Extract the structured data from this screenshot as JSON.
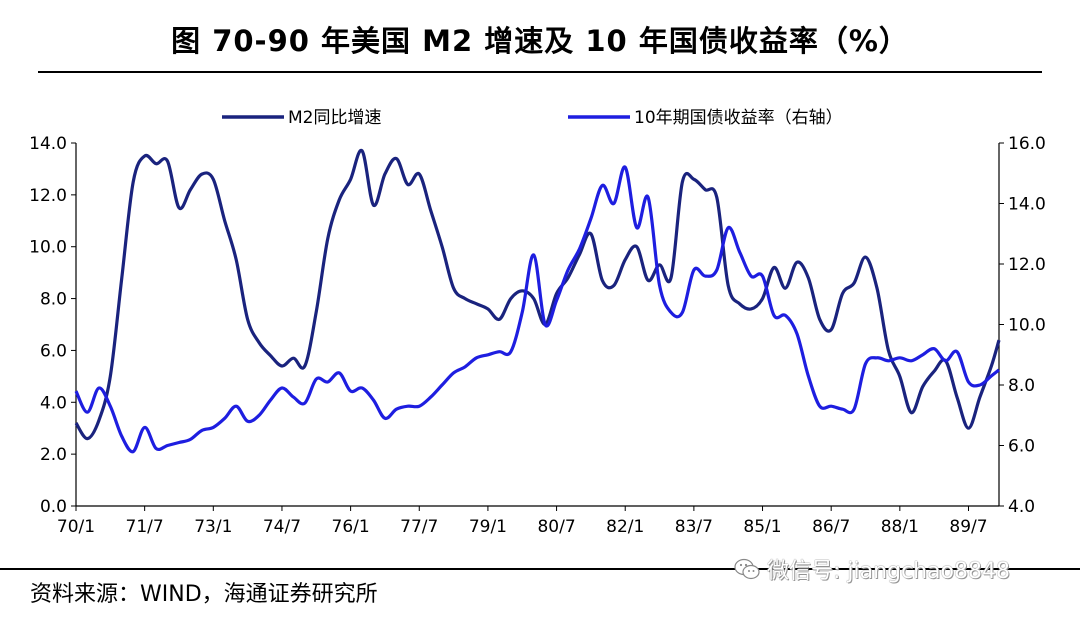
{
  "title": "图    70-90 年美国 M2 增速及 10 年国债收益率（%）",
  "source": "资料来源：WIND，海通证券研究所",
  "watermark": "微信号: jiangchao8848",
  "chart_data": {
    "type": "line",
    "x_ticks": [
      "70/1",
      "71/7",
      "73/1",
      "74/7",
      "76/1",
      "77/7",
      "79/1",
      "80/7",
      "82/1",
      "83/7",
      "85/1",
      "86/7",
      "88/1",
      "89/7"
    ],
    "x_start": "1970-01",
    "x_end": "1990-03",
    "y_left": {
      "ticks": [
        "0.0",
        "2.0",
        "4.0",
        "6.0",
        "8.0",
        "10.0",
        "12.0",
        "14.0"
      ],
      "lim": [
        0,
        14
      ]
    },
    "y_right": {
      "ticks": [
        "4.0",
        "6.0",
        "8.0",
        "10.0",
        "12.0",
        "14.0",
        "16.0"
      ],
      "lim": [
        4,
        16
      ]
    },
    "legend_position": "top",
    "series": [
      {
        "name": "M2同比增速",
        "axis": "left",
        "color": "#1a237e",
        "x": [
          "1970-01",
          "1970-04",
          "1970-07",
          "1970-10",
          "1971-01",
          "1971-04",
          "1971-07",
          "1971-10",
          "1972-01",
          "1972-04",
          "1972-07",
          "1972-10",
          "1973-01",
          "1973-04",
          "1973-07",
          "1973-10",
          "1974-01",
          "1974-04",
          "1974-07",
          "1974-10",
          "1975-01",
          "1975-04",
          "1975-07",
          "1975-10",
          "1976-01",
          "1976-04",
          "1976-07",
          "1976-10",
          "1977-01",
          "1977-04",
          "1977-07",
          "1977-10",
          "1978-01",
          "1978-04",
          "1978-07",
          "1978-10",
          "1979-01",
          "1979-04",
          "1979-07",
          "1979-10",
          "1980-01",
          "1980-04",
          "1980-07",
          "1980-10",
          "1981-01",
          "1981-04",
          "1981-07",
          "1981-10",
          "1982-01",
          "1982-04",
          "1982-07",
          "1982-10",
          "1983-01",
          "1983-04",
          "1983-07",
          "1983-10",
          "1984-01",
          "1984-04",
          "1984-07",
          "1984-10",
          "1985-01",
          "1985-04",
          "1985-07",
          "1985-10",
          "1986-01",
          "1986-04",
          "1986-07",
          "1986-10",
          "1987-01",
          "1987-04",
          "1987-07",
          "1987-10",
          "1988-01",
          "1988-04",
          "1988-07",
          "1988-10",
          "1989-01",
          "1989-04",
          "1989-07",
          "1989-10",
          "1990-01",
          "1990-03"
        ],
        "values": [
          3.2,
          2.6,
          3.3,
          5.0,
          8.8,
          12.5,
          13.5,
          13.2,
          13.3,
          11.5,
          12.2,
          12.8,
          12.6,
          11.0,
          9.5,
          7.2,
          6.3,
          5.8,
          5.4,
          5.7,
          5.4,
          7.5,
          10.3,
          11.8,
          12.6,
          13.7,
          11.6,
          12.8,
          13.4,
          12.4,
          12.8,
          11.4,
          10.0,
          8.4,
          8.0,
          7.8,
          7.6,
          7.2,
          8.0,
          8.3,
          8.0,
          7.0,
          8.2,
          8.8,
          9.7,
          10.5,
          8.7,
          8.5,
          9.5,
          10.0,
          8.7,
          9.3,
          8.8,
          12.5,
          12.6,
          12.2,
          11.9,
          8.5,
          7.8,
          7.6,
          8.0,
          9.2,
          8.4,
          9.4,
          8.8,
          7.2,
          6.8,
          8.2,
          8.6,
          9.6,
          8.4,
          6.0,
          5.0,
          3.6,
          4.6,
          5.2,
          5.6,
          4.2,
          3.0,
          4.2,
          5.4,
          6.4
        ]
      },
      {
        "name": "10年期国债收益率（右轴）",
        "axis": "right",
        "color": "#1e1ee0",
        "x": [
          "1970-01",
          "1970-04",
          "1970-07",
          "1970-10",
          "1971-01",
          "1971-04",
          "1971-07",
          "1971-10",
          "1972-01",
          "1972-04",
          "1972-07",
          "1972-10",
          "1973-01",
          "1973-04",
          "1973-07",
          "1973-10",
          "1974-01",
          "1974-04",
          "1974-07",
          "1974-10",
          "1975-01",
          "1975-04",
          "1975-07",
          "1975-10",
          "1976-01",
          "1976-04",
          "1976-07",
          "1976-10",
          "1977-01",
          "1977-04",
          "1977-07",
          "1977-10",
          "1978-01",
          "1978-04",
          "1978-07",
          "1978-10",
          "1979-01",
          "1979-04",
          "1979-07",
          "1979-10",
          "1980-01",
          "1980-04",
          "1980-07",
          "1980-10",
          "1981-01",
          "1981-04",
          "1981-07",
          "1981-10",
          "1982-01",
          "1982-04",
          "1982-07",
          "1982-10",
          "1983-01",
          "1983-04",
          "1983-07",
          "1983-10",
          "1984-01",
          "1984-04",
          "1984-07",
          "1984-10",
          "1985-01",
          "1985-04",
          "1985-07",
          "1985-10",
          "1986-01",
          "1986-04",
          "1986-07",
          "1986-10",
          "1987-01",
          "1987-04",
          "1987-07",
          "1987-10",
          "1988-01",
          "1988-04",
          "1988-07",
          "1988-10",
          "1989-01",
          "1989-04",
          "1989-07",
          "1989-10",
          "1990-01",
          "1990-03"
        ],
        "values": [
          7.8,
          7.1,
          7.9,
          7.3,
          6.3,
          5.8,
          6.6,
          5.9,
          6.0,
          6.1,
          6.2,
          6.5,
          6.6,
          6.9,
          7.3,
          6.8,
          7.0,
          7.5,
          7.9,
          7.6,
          7.4,
          8.2,
          8.1,
          8.4,
          7.8,
          7.9,
          7.5,
          6.9,
          7.2,
          7.3,
          7.3,
          7.6,
          8.0,
          8.4,
          8.6,
          8.9,
          9.0,
          9.1,
          9.1,
          10.4,
          12.3,
          10.0,
          10.8,
          11.8,
          12.5,
          13.5,
          14.6,
          14.0,
          15.2,
          13.2,
          14.2,
          11.3,
          10.4,
          10.4,
          11.8,
          11.6,
          11.8,
          13.2,
          12.4,
          11.6,
          11.6,
          10.3,
          10.3,
          9.7,
          8.3,
          7.3,
          7.3,
          7.2,
          7.2,
          8.7,
          8.9,
          8.8,
          8.9,
          8.8,
          9.0,
          9.2,
          8.8,
          9.1,
          8.1,
          8.0,
          8.3,
          8.5
        ]
      }
    ]
  }
}
